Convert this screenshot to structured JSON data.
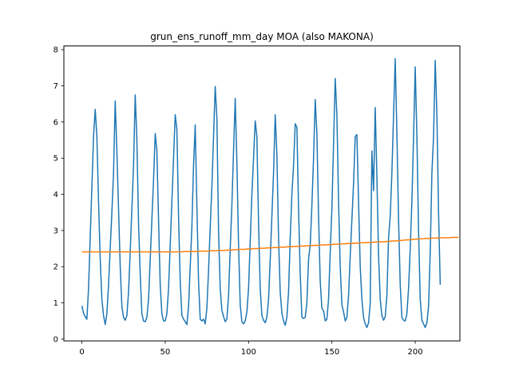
{
  "chart_data": {
    "type": "line",
    "title": "grun_ens_runoff_mm_day MOA (also MAKONA)",
    "xlabel": "",
    "ylabel": "",
    "xlim": [
      -10.8,
      226.8
    ],
    "ylim": [
      -0.05,
      8.1
    ],
    "xticks": [
      0,
      50,
      100,
      150,
      200
    ],
    "yticks": [
      0,
      1,
      2,
      3,
      4,
      5,
      6,
      7,
      8
    ],
    "grid": false,
    "colors": [
      "#1f77b4",
      "#ff7f0e"
    ],
    "series": [
      {
        "values": [
          0.92,
          0.72,
          0.62,
          0.55,
          1.4,
          2.8,
          4.2,
          5.6,
          6.35,
          5.6,
          3.8,
          2.2,
          1.1,
          0.65,
          0.4,
          0.7,
          1.5,
          2.5,
          3.5,
          4.6,
          6.58,
          5.2,
          3.6,
          2.0,
          0.9,
          0.6,
          0.52,
          0.65,
          1.3,
          2.4,
          3.6,
          4.8,
          6.75,
          5.5,
          3.2,
          1.8,
          0.7,
          0.5,
          0.48,
          0.6,
          1.1,
          2.2,
          3.3,
          4.4,
          5.68,
          5.2,
          3.3,
          1.5,
          0.7,
          0.5,
          0.5,
          0.7,
          1.4,
          2.6,
          3.8,
          5.0,
          6.2,
          5.8,
          3.4,
          1.6,
          0.65,
          0.55,
          0.48,
          0.4,
          0.9,
          2.0,
          3.1,
          4.8,
          5.92,
          3.7,
          1.6,
          0.55,
          0.5,
          0.55,
          0.42,
          0.85,
          1.9,
          3.1,
          4.2,
          5.6,
          6.98,
          6.1,
          3.0,
          1.4,
          0.8,
          0.62,
          0.48,
          0.55,
          1.2,
          2.5,
          3.7,
          5.2,
          6.65,
          4.9,
          2.6,
          0.95,
          0.48,
          0.42,
          0.5,
          0.75,
          1.4,
          2.7,
          4.0,
          5.0,
          6.03,
          5.6,
          3.2,
          1.4,
          0.65,
          0.52,
          0.45,
          0.6,
          1.1,
          2.2,
          3.4,
          4.6,
          6.2,
          5.1,
          2.8,
          1.3,
          0.72,
          0.5,
          0.38,
          0.6,
          1.3,
          2.8,
          4.0,
          4.8,
          5.95,
          5.85,
          3.6,
          1.8,
          0.6,
          0.57,
          0.6,
          1.0,
          2.2,
          2.6,
          3.7,
          5.0,
          6.62,
          5.7,
          3.4,
          1.6,
          0.85,
          0.78,
          0.5,
          0.55,
          1.1,
          2.4,
          3.6,
          5.4,
          7.2,
          6.2,
          3.8,
          2.0,
          0.95,
          0.75,
          0.5,
          0.6,
          1.2,
          2.3,
          3.3,
          4.3,
          5.6,
          5.65,
          3.8,
          2.0,
          1.1,
          0.6,
          0.42,
          0.32,
          0.45,
          1.0,
          5.2,
          4.1,
          6.4,
          4.5,
          2.3,
          1.1,
          0.65,
          0.52,
          0.62,
          1.2,
          2.8,
          3.4,
          4.6,
          6.2,
          7.75,
          5.7,
          3.3,
          1.5,
          0.6,
          0.52,
          0.5,
          0.7,
          1.4,
          2.5,
          3.8,
          5.6,
          7.52,
          5.6,
          3.0,
          1.1,
          0.52,
          0.42,
          0.32,
          0.45,
          0.9,
          2.4,
          4.6,
          5.6,
          7.7,
          6.2,
          3.5,
          1.5
        ]
      },
      {
        "values": [
          2.41,
          2.41,
          2.41,
          2.41,
          2.41,
          2.41,
          2.41,
          2.41,
          2.41,
          2.41,
          2.41,
          2.41,
          2.41,
          2.41,
          2.41,
          2.41,
          2.41,
          2.41,
          2.41,
          2.41,
          2.41,
          2.41,
          2.41,
          2.41,
          2.41,
          2.41,
          2.41,
          2.41,
          2.41,
          2.41,
          2.41,
          2.41,
          2.41,
          2.41,
          2.41,
          2.41,
          2.41,
          2.41,
          2.41,
          2.41,
          2.41,
          2.41,
          2.41,
          2.41,
          2.41,
          2.41,
          2.41,
          2.41,
          2.41,
          2.41,
          2.41,
          2.41,
          2.41,
          2.41,
          2.41,
          2.41,
          2.41,
          2.41,
          2.41,
          2.41,
          2.41,
          2.42,
          2.42,
          2.42,
          2.42,
          2.42,
          2.42,
          2.42,
          2.42,
          2.42,
          2.43,
          2.43,
          2.43,
          2.43,
          2.43,
          2.43,
          2.43,
          2.44,
          2.44,
          2.44,
          2.44,
          2.44,
          2.45,
          2.45,
          2.45,
          2.45,
          2.45,
          2.46,
          2.46,
          2.46,
          2.46,
          2.47,
          2.47,
          2.47,
          2.47,
          2.48,
          2.48,
          2.48,
          2.48,
          2.49,
          2.49,
          2.49,
          2.49,
          2.5,
          2.5,
          2.5,
          2.5,
          2.51,
          2.51,
          2.51,
          2.51,
          2.52,
          2.52,
          2.52,
          2.52,
          2.53,
          2.53,
          2.53,
          2.53,
          2.54,
          2.54,
          2.54,
          2.54,
          2.55,
          2.55,
          2.55,
          2.55,
          2.56,
          2.56,
          2.56,
          2.56,
          2.57,
          2.57,
          2.57,
          2.57,
          2.58,
          2.58,
          2.58,
          2.58,
          2.59,
          2.59,
          2.59,
          2.59,
          2.6,
          2.6,
          2.6,
          2.6,
          2.61,
          2.61,
          2.61,
          2.61,
          2.62,
          2.62,
          2.62,
          2.62,
          2.63,
          2.63,
          2.63,
          2.63,
          2.64,
          2.64,
          2.64,
          2.64,
          2.65,
          2.65,
          2.65,
          2.65,
          2.66,
          2.66,
          2.66,
          2.66,
          2.67,
          2.67,
          2.67,
          2.67,
          2.68,
          2.68,
          2.68,
          2.68,
          2.69,
          2.69,
          2.69,
          2.69,
          2.7,
          2.7,
          2.7,
          2.71,
          2.71,
          2.71,
          2.72,
          2.72,
          2.72,
          2.73,
          2.73,
          2.74,
          2.74,
          2.74,
          2.75,
          2.75,
          2.76,
          2.76,
          2.76,
          2.77,
          2.77,
          2.77,
          2.77,
          2.78,
          2.78,
          2.78,
          2.78,
          2.79,
          2.79,
          2.79,
          2.79,
          2.79,
          2.8,
          2.8,
          2.8,
          2.8,
          2.8,
          2.8,
          2.8,
          2.81,
          2.81,
          2.81,
          2.81,
          2.81
        ]
      }
    ]
  }
}
